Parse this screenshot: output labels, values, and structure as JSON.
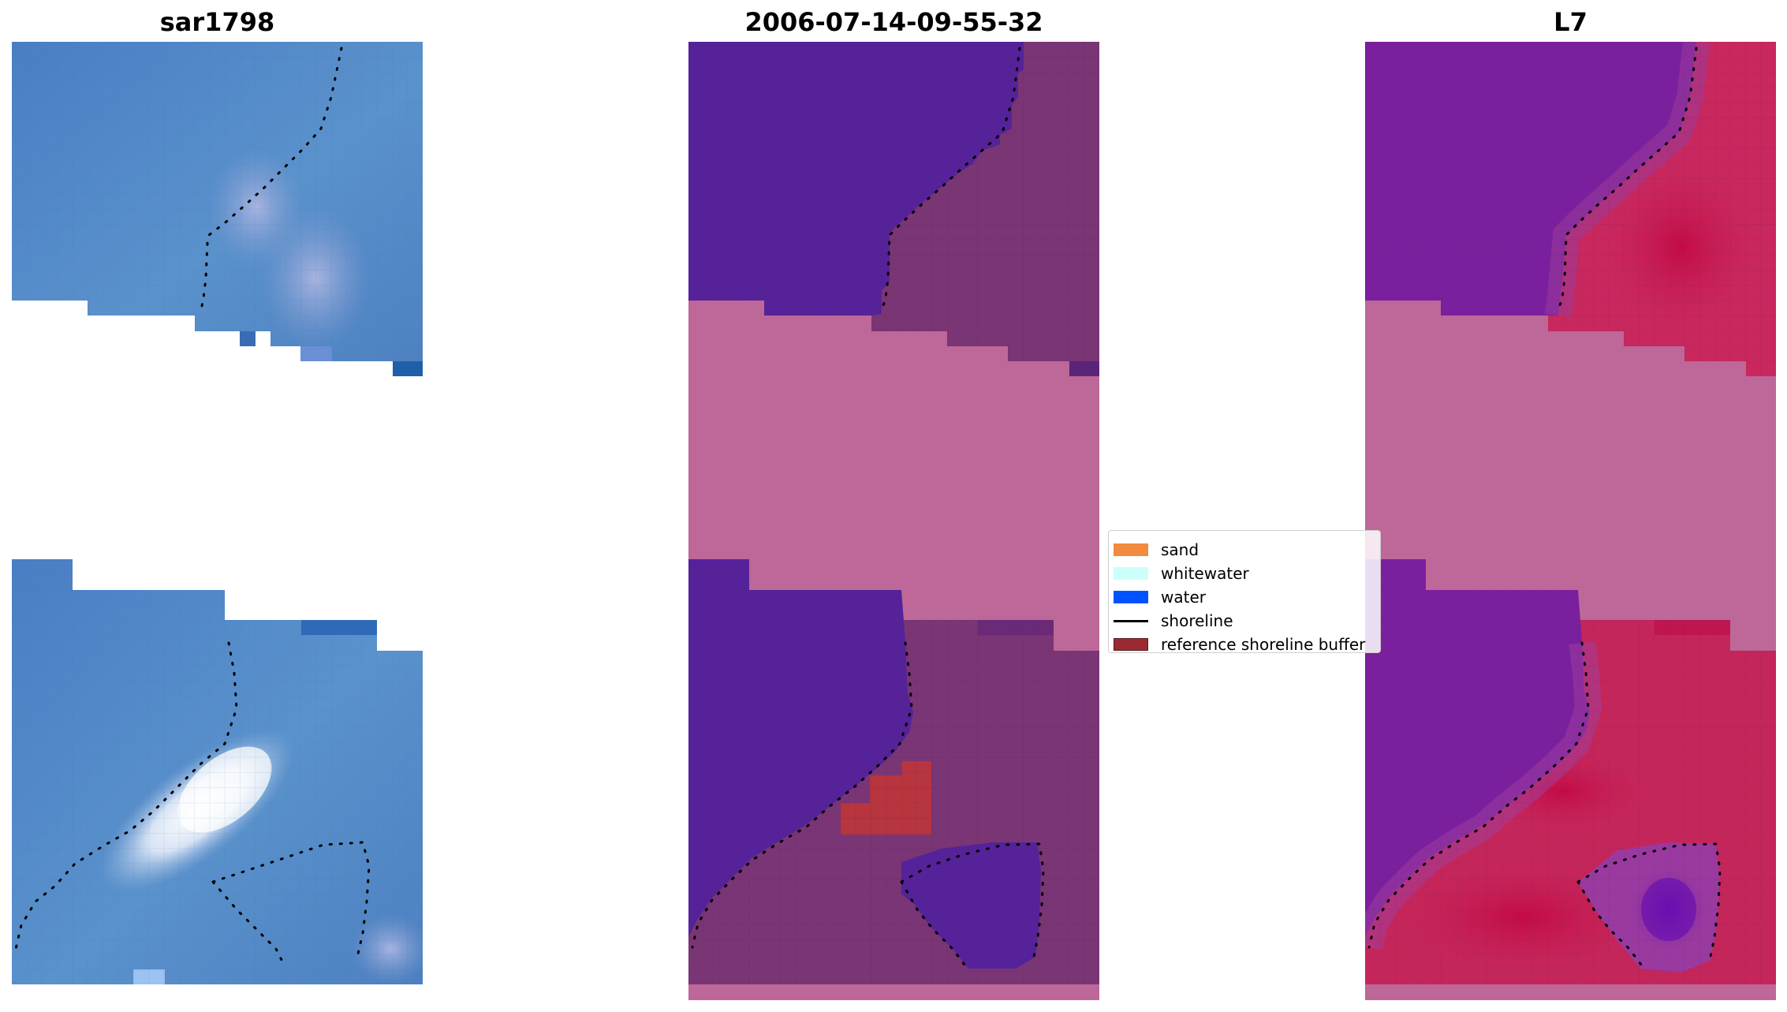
{
  "panels": [
    {
      "title": "sar1798"
    },
    {
      "title": "2006-07-14-09-55-32"
    },
    {
      "title": "L7"
    }
  ],
  "legend": {
    "items": [
      {
        "label": "sand",
        "color": "#f28a40",
        "kind": "patch"
      },
      {
        "label": "whitewater",
        "color": "#ccfffa",
        "kind": "patch"
      },
      {
        "label": "water",
        "color": "#0052ff",
        "kind": "patch"
      },
      {
        "label": "shoreline",
        "color": "#000000",
        "kind": "line"
      },
      {
        "label": "reference shoreline buffer",
        "color": "#9a2a32",
        "kind": "patch"
      }
    ]
  },
  "colors": {
    "rgb_water": "#4a7ec4",
    "rgb_water_light": "#5a92cc",
    "rgb_surf": "#e8eef8",
    "class_water": "#55229a",
    "class_land": "#7a3575",
    "class_nodata": "#bd6898",
    "class_buffer": "#b8353e",
    "index_water": "#7a1f9e",
    "index_land": "#c21a52",
    "index_nodata": "#bd6898",
    "shoreline": "#000000"
  }
}
